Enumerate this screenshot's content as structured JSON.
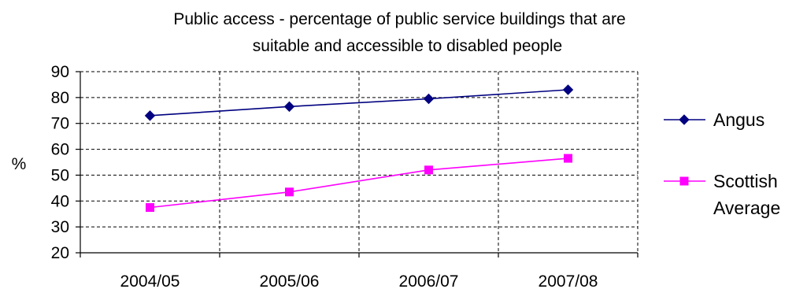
{
  "chart_data": {
    "type": "line",
    "title_lines": [
      "Public access - percentage of public service buildings that are",
      "suitable and accessible to disabled people"
    ],
    "ylabel": "%",
    "xlabel": "",
    "categories": [
      "2004/05",
      "2005/06",
      "2006/07",
      "2007/08"
    ],
    "ylim": [
      20,
      90
    ],
    "yticks": [
      20,
      30,
      40,
      50,
      60,
      70,
      80,
      90
    ],
    "grid": "dashed horizontal and vertical",
    "legend_position": "right",
    "series": [
      {
        "name": "Angus",
        "values": [
          73,
          76.5,
          79.5,
          83
        ],
        "color": "#000080",
        "marker": "diamond"
      },
      {
        "name": "Scottish Average",
        "legend_lines": [
          "Scottish",
          "Average"
        ],
        "values": [
          37.5,
          43.5,
          52,
          56.5
        ],
        "color": "#ff00ff",
        "marker": "square"
      }
    ]
  }
}
